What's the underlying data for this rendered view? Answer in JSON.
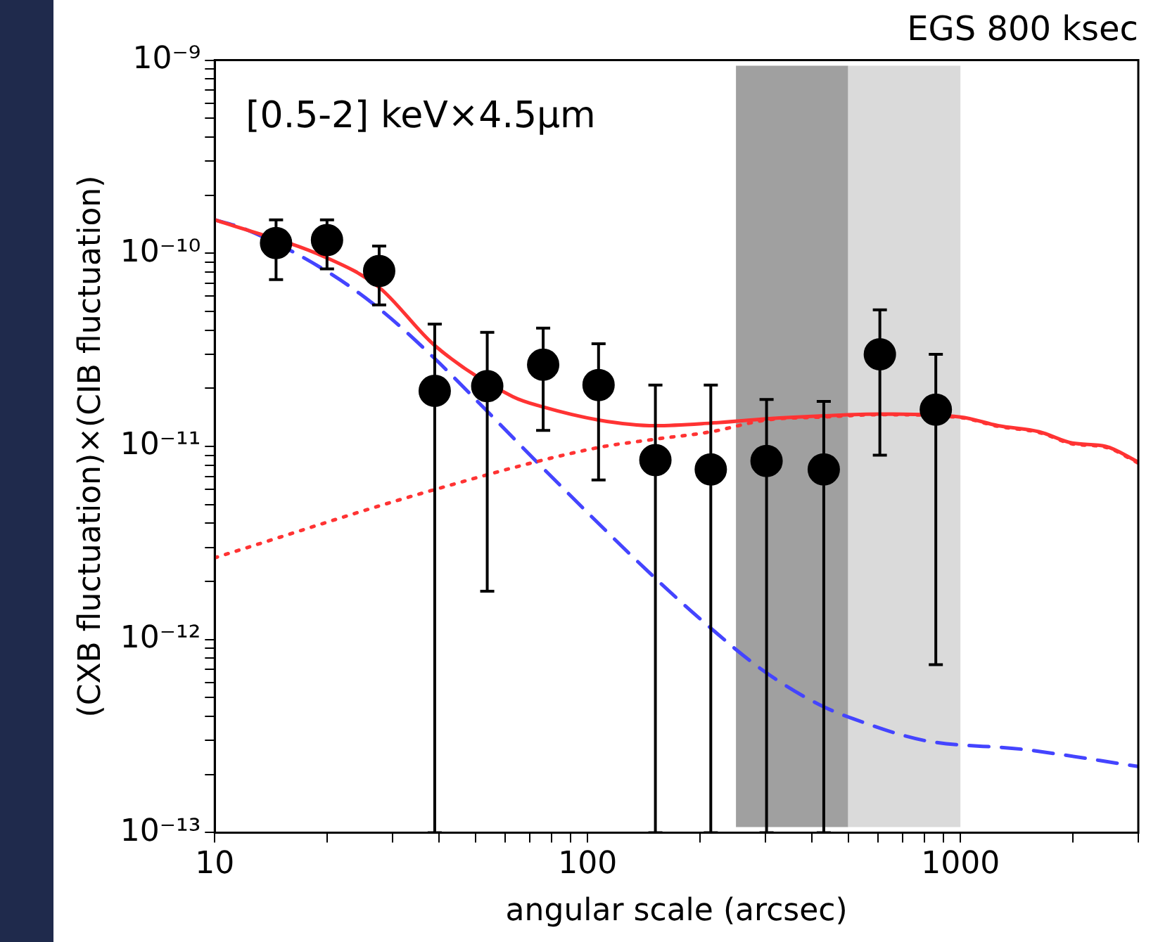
{
  "chart_data": {
    "type": "scatter",
    "title": "EGS 800 ksec",
    "xlabel": "angular scale (arcsec)",
    "ylabel": "(CXB fluctuation)×(CIB fluctuation)",
    "annotations": [
      "[0.5-2] keV×4.5μm"
    ],
    "log": "xy",
    "grid": false,
    "legend": false,
    "xlim": [
      10,
      3000
    ],
    "ylim": [
      1e-13,
      1e-09
    ],
    "xticks": [
      10,
      {
        "value": 20,
        "label": null
      },
      {
        "value": 30,
        "label": null
      },
      {
        "value": 40,
        "label": null
      },
      {
        "value": 50,
        "label": null
      },
      {
        "value": 60,
        "label": null
      },
      {
        "value": 70,
        "label": null
      },
      {
        "value": 80,
        "label": null
      },
      {
        "value": 90,
        "label": null
      },
      100,
      {
        "value": 200,
        "label": null
      },
      {
        "value": 300,
        "label": null
      },
      {
        "value": 400,
        "label": null
      },
      {
        "value": 500,
        "label": null
      },
      {
        "value": 600,
        "label": null
      },
      {
        "value": 700,
        "label": null
      },
      {
        "value": 800,
        "label": null
      },
      {
        "value": 900,
        "label": null
      },
      1000,
      {
        "value": 2000,
        "label": null
      },
      {
        "value": 3000,
        "label": null
      }
    ],
    "yticks": [
      {
        "value": 1e-13,
        "label": "10⁻¹³"
      },
      {
        "value": 2e-13,
        "label": null
      },
      {
        "value": 3e-13,
        "label": null
      },
      {
        "value": 4e-13,
        "label": null
      },
      {
        "value": 5e-13,
        "label": null
      },
      {
        "value": 6e-13,
        "label": null
      },
      {
        "value": 7e-13,
        "label": null
      },
      {
        "value": 8e-13,
        "label": null
      },
      {
        "value": 9e-13,
        "label": null
      },
      {
        "value": 1e-12,
        "label": "10⁻¹²"
      },
      {
        "value": 2e-12,
        "label": null
      },
      {
        "value": 3e-12,
        "label": null
      },
      {
        "value": 4e-12,
        "label": null
      },
      {
        "value": 5e-12,
        "label": null
      },
      {
        "value": 6e-12,
        "label": null
      },
      {
        "value": 7e-12,
        "label": null
      },
      {
        "value": 8e-12,
        "label": null
      },
      {
        "value": 9e-12,
        "label": null
      },
      {
        "value": 1e-11,
        "label": "10⁻¹¹"
      },
      {
        "value": 2e-11,
        "label": null
      },
      {
        "value": 3e-11,
        "label": null
      },
      {
        "value": 4e-11,
        "label": null
      },
      {
        "value": 5e-11,
        "label": null
      },
      {
        "value": 6e-11,
        "label": null
      },
      {
        "value": 7e-11,
        "label": null
      },
      {
        "value": 8e-11,
        "label": null
      },
      {
        "value": 9e-11,
        "label": null
      },
      {
        "value": 1e-10,
        "label": "10⁻¹⁰"
      },
      {
        "value": 2e-10,
        "label": null
      },
      {
        "value": 3e-10,
        "label": null
      },
      {
        "value": 4e-10,
        "label": null
      },
      {
        "value": 5e-10,
        "label": null
      },
      {
        "value": 6e-10,
        "label": null
      },
      {
        "value": 7e-10,
        "label": null
      },
      {
        "value": 8e-10,
        "label": null
      },
      {
        "value": 9e-10,
        "label": null
      },
      {
        "value": 1e-09,
        "label": "10⁻⁹"
      }
    ],
    "bands": [
      {
        "axis": "x",
        "from": 250,
        "to": 500,
        "color": "#a0a0a0"
      },
      {
        "axis": "x",
        "from": 500,
        "to": 1000,
        "color": "#dadada"
      }
    ],
    "series": [
      {
        "marker": "circle",
        "color": "#000000",
        "x": [
          14.6,
          20,
          27.6,
          38.9,
          53.8,
          76,
          107,
          152,
          214,
          302,
          430,
          608,
          859
        ],
        "values": [
          1.13e-10,
          1.17e-10,
          8.1e-11,
          1.94e-11,
          2.05e-11,
          2.65e-11,
          2.08e-11,
          8.5e-12,
          7.6e-12,
          8.4e-12,
          7.6e-12,
          3e-11,
          1.55e-11
        ],
        "errors": [
          [
            7.3e-11,
            1.49e-10
          ],
          [
            8.3e-11,
            1.49e-10
          ],
          [
            5.4e-11,
            1.09e-10
          ],
          [
            1e-13,
            4.3e-11
          ],
          [
            1.78e-12,
            3.9e-11
          ],
          [
            1.21e-11,
            4.1e-11
          ],
          [
            6.7e-12,
            3.4e-11
          ],
          [
            1e-13,
            2.08e-11
          ],
          [
            1e-13,
            2.08e-11
          ],
          [
            1e-13,
            1.75e-11
          ],
          [
            1e-13,
            1.71e-11
          ],
          [
            9e-12,
            5.1e-11
          ],
          [
            7.4e-13,
            3e-11
          ]
        ]
      },
      {
        "type": "line",
        "marker": "none",
        "line_style": "solid",
        "color": "#ff3333",
        "x": [
          10,
          19.9,
          27.5,
          38.9,
          63,
          76,
          107,
          152,
          214,
          302,
          430,
          608,
          1000,
          1262,
          1628,
          1998,
          2453,
          3000
        ],
        "values": [
          1.49e-10,
          9.5e-11,
          6.7e-11,
          3.33e-11,
          1.81e-11,
          1.6e-11,
          1.37e-11,
          1.28e-11,
          1.32e-11,
          1.39e-11,
          1.44e-11,
          1.47e-11,
          1.42e-11,
          1.28e-11,
          1.19e-11,
          1.04e-11,
          1e-11,
          8.3e-12
        ]
      },
      {
        "type": "line",
        "marker": "none",
        "line_style": "dotted",
        "color": "#ff3333",
        "x": [
          10,
          38,
          105,
          152,
          214,
          302,
          430,
          608,
          1000,
          1262,
          1628,
          1998,
          2453,
          3000
        ],
        "values": [
          2.65e-12,
          5.9e-12,
          9.8e-12,
          1.09e-11,
          1.19e-11,
          1.37e-11,
          1.42e-11,
          1.46e-11,
          1.41e-11,
          1.27e-11,
          1.18e-11,
          1.03e-11,
          9.9e-12,
          8.2e-12
        ]
      },
      {
        "type": "line",
        "marker": "none",
        "line_style": "dashed",
        "color": "#4444ff",
        "x": [
          10,
          12,
          19.9,
          27.5,
          38.9,
          53.8,
          76,
          149,
          207,
          296,
          418,
          533,
          800,
          1469,
          3000
        ],
        "values": [
          1.49e-10,
          1.34e-10,
          8.1e-11,
          5.2e-11,
          2.85e-11,
          1.52e-11,
          7.7e-12,
          2.15e-12,
          1.21e-12,
          6.9e-13,
          4.6e-13,
          3.8e-13,
          3e-13,
          2.7e-13,
          2.2e-13
        ]
      }
    ]
  }
}
